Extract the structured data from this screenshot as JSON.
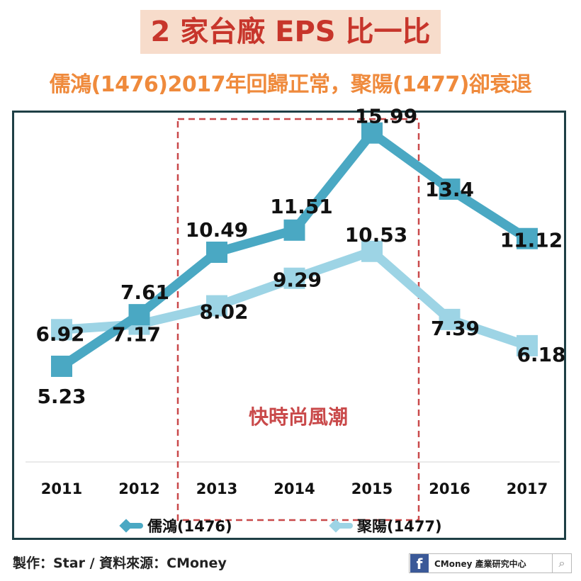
{
  "header": {
    "title": "2 家台廠 EPS 比一比",
    "subtitle": "儒鴻(1476)2017年回歸正常，聚陽(1477)卻衰退"
  },
  "chart_data": {
    "type": "line",
    "categories": [
      "2011",
      "2012",
      "2013",
      "2014",
      "2015",
      "2016",
      "2017"
    ],
    "series": [
      {
        "name": "儒鴻(1476)",
        "values": [
          5.23,
          7.61,
          10.49,
          11.51,
          15.99,
          13.4,
          11.12
        ],
        "labels": [
          "5.23",
          "7.61",
          "10.49",
          "11.51",
          "15.99",
          "13.4",
          "11.12"
        ],
        "color": "#4aa8c3"
      },
      {
        "name": "聚陽(1477)",
        "values": [
          6.92,
          7.17,
          8.02,
          9.29,
          10.53,
          7.39,
          6.18
        ],
        "labels": [
          "6.92",
          "7.17",
          "8.02",
          "9.29",
          "10.53",
          "7.39",
          "6.18"
        ],
        "color": "#9dd4e5"
      }
    ],
    "highlight": {
      "from": "2013",
      "to": "2015",
      "label": "快時尚風潮",
      "color": "#c9494a"
    },
    "legend_position": "bottom",
    "grid": false
  },
  "footer": {
    "credit": "製作：Star / 資料來源：CMoney",
    "brand_text": "CMoney 產業研究中心",
    "fb_glyph": "f",
    "search_glyph": "⌕"
  }
}
